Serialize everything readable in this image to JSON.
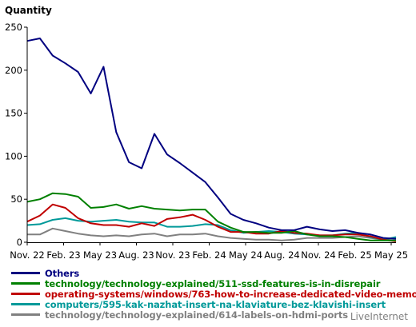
{
  "chart_data": {
    "type": "line",
    "ylabel": "Quantity",
    "ylim": [
      0,
      250
    ],
    "yticks": [
      0,
      50,
      100,
      150,
      200,
      250
    ],
    "xticks": [
      "Nov. 22",
      "Feb. 23",
      "May 23",
      "Aug. 23",
      "Nov. 23",
      "Feb. 24",
      "May 24",
      "Aug. 24",
      "Nov. 24",
      "Feb. 25",
      "May 25"
    ],
    "grid": false,
    "legend_position": "bottom",
    "series": [
      {
        "name": "Others",
        "color": "#000080",
        "values": [
          234,
          237,
          217,
          208,
          198,
          173,
          204,
          128,
          93,
          86,
          126,
          102,
          92,
          81,
          70,
          52,
          33,
          26,
          22,
          17,
          14,
          14,
          18,
          15,
          13,
          14,
          11,
          9,
          5,
          4
        ]
      },
      {
        "name": "technology/technology-explained/511-ssd-features-is-in-disrepair",
        "color": "#008000",
        "values": [
          47,
          50,
          57,
          56,
          53,
          40,
          41,
          44,
          39,
          42,
          39,
          38,
          37,
          38,
          38,
          24,
          17,
          12,
          12,
          11,
          11,
          13,
          9,
          7,
          7,
          6,
          4,
          2,
          2,
          2
        ]
      },
      {
        "name": "operating-systems/windows/763-how-to-increase-dedicated-video-memo",
        "color": "#c00000",
        "values": [
          24,
          31,
          44,
          40,
          28,
          22,
          20,
          20,
          18,
          22,
          19,
          27,
          29,
          32,
          26,
          18,
          12,
          12,
          10,
          10,
          13,
          11,
          10,
          8,
          8,
          9,
          9,
          7,
          3,
          1
        ]
      },
      {
        "name": "computers/595-kak-nazhat-insert-na-klaviature-bez-klavishi-insert",
        "color": "#009999",
        "values": [
          20,
          21,
          26,
          28,
          25,
          24,
          25,
          26,
          24,
          23,
          23,
          18,
          18,
          19,
          21,
          20,
          14,
          11,
          12,
          13,
          12,
          10,
          9,
          8,
          8,
          10,
          11,
          6,
          3,
          6
        ]
      },
      {
        "name": "technology/technology-explained/614-labels-on-hdmi-ports",
        "color": "#808080",
        "values": [
          9,
          9,
          16,
          13,
          10,
          8,
          7,
          8,
          7,
          9,
          10,
          7,
          9,
          9,
          10,
          7,
          5,
          4,
          3,
          3,
          2,
          3,
          5,
          5,
          5,
          6,
          7,
          5,
          3,
          5
        ]
      }
    ]
  },
  "branding": {
    "label": "LiveInternet"
  }
}
